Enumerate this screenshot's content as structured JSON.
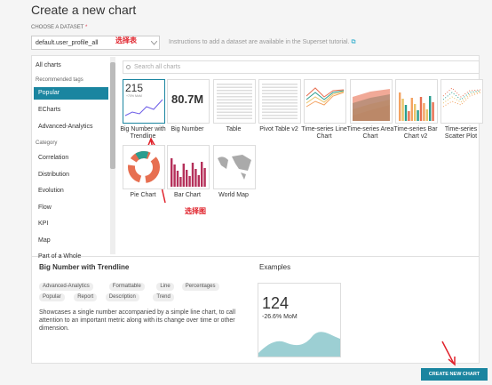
{
  "header": {
    "title": "Create a new chart"
  },
  "dataset": {
    "label": "CHOOSE A DATASET",
    "required": "*",
    "value": "default.user_profile_all",
    "hint": "Instructions to add a dataset are available in the Superset tutorial."
  },
  "annotations": {
    "table": "选择表",
    "chart": "选择图"
  },
  "sidebar": {
    "all": "All charts",
    "recommended": "Recommended tags",
    "tags": [
      "Popular",
      "ECharts",
      "Advanced-Analytics"
    ],
    "category": "Category",
    "categories": [
      "Correlation",
      "Distribution",
      "Evolution",
      "Flow",
      "KPI",
      "Map",
      "Part of a Whole"
    ]
  },
  "search": {
    "placeholder": "Search all charts"
  },
  "charts": [
    {
      "label": "Big Number with Trendline",
      "thumb": "215",
      "sub": "+70% MoM"
    },
    {
      "label": "Big Number",
      "thumb": "80.7M"
    },
    {
      "label": "Table"
    },
    {
      "label": "Pivot Table v2"
    },
    {
      "label": "Time-series Line Chart"
    },
    {
      "label": "Time-series Area Chart"
    },
    {
      "label": "Time-series Bar Chart v2"
    },
    {
      "label": "Time-series Scatter Plot"
    },
    {
      "label": "Pie Chart"
    },
    {
      "label": "Bar Chart"
    },
    {
      "label": "World Map"
    }
  ],
  "details": {
    "title": "Big Number with Trendline",
    "tags": [
      "Advanced-Analytics",
      "Formattable",
      "Line",
      "Percentages",
      "Popular",
      "Report",
      "Description",
      "Trend"
    ],
    "description": "Showcases a single number accompanied by a simple line chart, to call attention to an important metric along with its change over time or other dimension.",
    "examples": "Examples",
    "example_value": "124",
    "example_change": "-26.6% MoM"
  },
  "button": "CREATE NEW CHART"
}
